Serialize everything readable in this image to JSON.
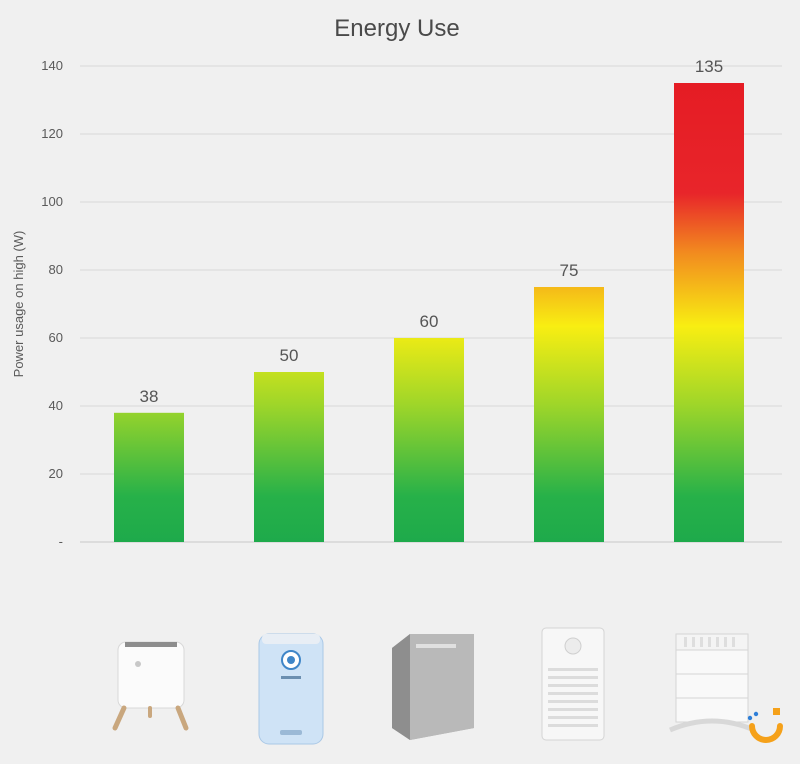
{
  "chart_data": {
    "type": "bar",
    "title": "Energy Use",
    "ylabel": "Power usage on high (W)",
    "xlabel": "",
    "categories": [
      "",
      "",
      "",
      "",
      ""
    ],
    "values": [
      38,
      50,
      60,
      75,
      135
    ],
    "value_labels": [
      "38",
      "50",
      "60",
      "75",
      "135"
    ],
    "ylim": [
      0,
      140
    ],
    "yticks": [
      0,
      20,
      40,
      60,
      80,
      100,
      120,
      140
    ],
    "ytick_labels": [
      "-",
      "20",
      "40",
      "60",
      "80",
      "100",
      "120",
      "140"
    ],
    "grid": true,
    "legend": "none",
    "bar_gradient": [
      "#1db04a",
      "#8cd22c",
      "#f7ec16",
      "#f28a1f",
      "#e71d24"
    ],
    "product_icons": [
      "air-purifier-on-legs-icon",
      "blue-air-purifier-icon",
      "grey-air-purifier-icon",
      "white-tower-air-purifier-icon",
      "modular-air-purifier-icon"
    ]
  },
  "brand_colors": {
    "logo_orange": "#f5a11a",
    "logo_blue": "#2f7fd8"
  }
}
